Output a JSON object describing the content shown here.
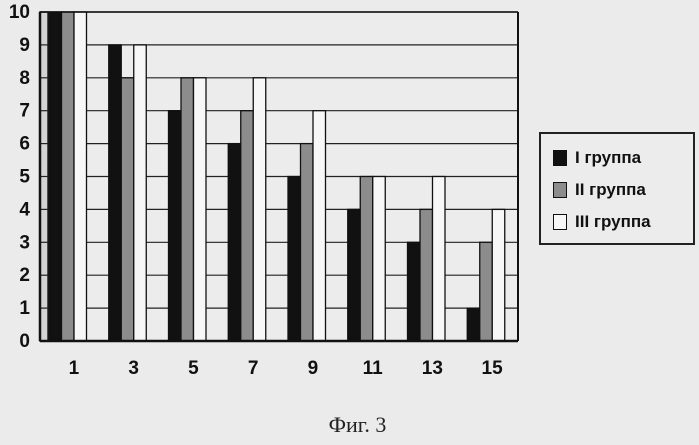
{
  "chart_data": {
    "type": "bar",
    "categories": [
      "1",
      "3",
      "5",
      "7",
      "9",
      "11",
      "13",
      "15"
    ],
    "series": [
      {
        "name": "I группа",
        "color": "#111111",
        "values": [
          10,
          9,
          7,
          6,
          5,
          4,
          3,
          1
        ]
      },
      {
        "name": "II группа",
        "color": "#8c8c8c",
        "values": [
          10,
          8,
          8,
          7,
          6,
          5,
          4,
          3
        ]
      },
      {
        "name": "III группа",
        "color": "#f7f7f7",
        "values": [
          10,
          9,
          8,
          8,
          7,
          5,
          5,
          4
        ]
      }
    ],
    "yticks": [
      "0",
      "1",
      "2",
      "3",
      "4",
      "5",
      "6",
      "7",
      "8",
      "9",
      "10"
    ],
    "ylim": [
      0,
      10
    ],
    "grid": true,
    "legend_position": "right",
    "title": "",
    "xlabel": "",
    "ylabel": ""
  },
  "caption": "Фиг. 3"
}
